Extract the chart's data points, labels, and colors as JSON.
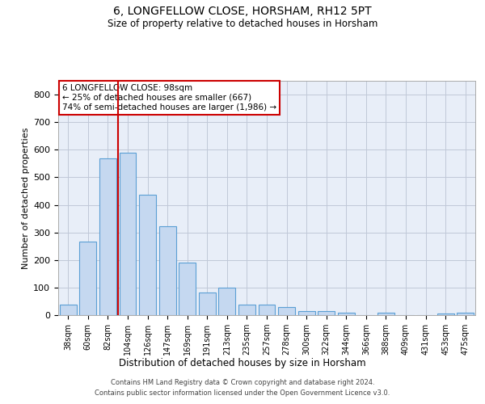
{
  "title": "6, LONGFELLOW CLOSE, HORSHAM, RH12 5PT",
  "subtitle": "Size of property relative to detached houses in Horsham",
  "xlabel": "Distribution of detached houses by size in Horsham",
  "ylabel": "Number of detached properties",
  "categories": [
    "38sqm",
    "60sqm",
    "82sqm",
    "104sqm",
    "126sqm",
    "147sqm",
    "169sqm",
    "191sqm",
    "213sqm",
    "235sqm",
    "257sqm",
    "278sqm",
    "300sqm",
    "322sqm",
    "344sqm",
    "366sqm",
    "388sqm",
    "409sqm",
    "431sqm",
    "453sqm",
    "475sqm"
  ],
  "values": [
    38,
    267,
    570,
    590,
    437,
    322,
    190,
    83,
    100,
    37,
    37,
    30,
    14,
    15,
    10,
    0,
    8,
    0,
    0,
    5,
    8
  ],
  "bar_color": "#c5d8f0",
  "bar_edge_color": "#5a9fd4",
  "annotation_line1": "6 LONGFELLOW CLOSE: 98sqm",
  "annotation_line2": "← 25% of detached houses are smaller (667)",
  "annotation_line3": "74% of semi-detached houses are larger (1,986) →",
  "annotation_box_color": "#ffffff",
  "annotation_box_edge_color": "#cc0000",
  "vline_color": "#cc0000",
  "grid_color": "#c0c8d8",
  "bg_color": "#e8eef8",
  "ylim": [
    0,
    850
  ],
  "yticks": [
    0,
    100,
    200,
    300,
    400,
    500,
    600,
    700,
    800
  ],
  "footer_line1": "Contains HM Land Registry data © Crown copyright and database right 2024.",
  "footer_line2": "Contains public sector information licensed under the Open Government Licence v3.0."
}
